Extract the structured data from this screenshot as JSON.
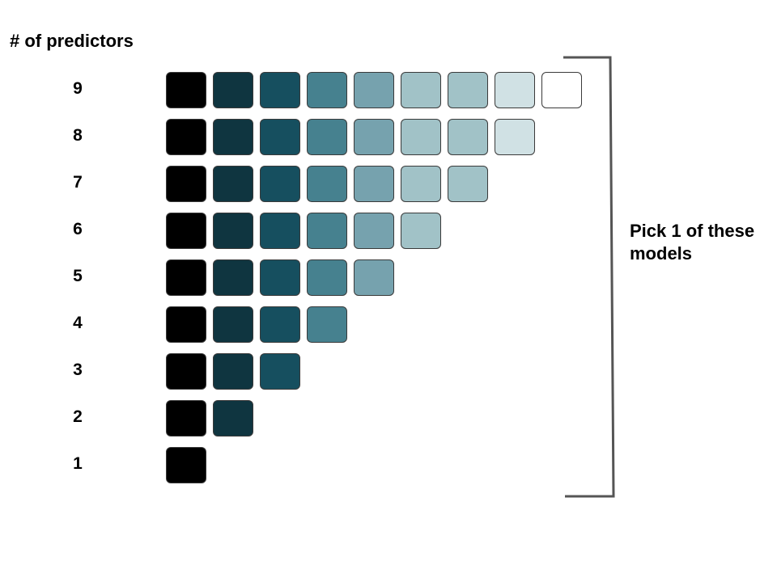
{
  "header": {
    "title": "# of predictors"
  },
  "rows": [
    {
      "label": "9",
      "count": 9
    },
    {
      "label": "8",
      "count": 8
    },
    {
      "label": "7",
      "count": 7
    },
    {
      "label": "6",
      "count": 6
    },
    {
      "label": "5",
      "count": 5
    },
    {
      "label": "4",
      "count": 4
    },
    {
      "label": "3",
      "count": 3
    },
    {
      "label": "2",
      "count": 2
    },
    {
      "label": "1",
      "count": 1
    }
  ],
  "palette": [
    "#000000",
    "#0f3540",
    "#164f5f",
    "#46818f",
    "#76a2ae",
    "#a1c2c7",
    "#a1c2c7",
    "#d0e1e4",
    "#ffffff"
  ],
  "bracket_color": "#555555",
  "note": {
    "line1": "Pick 1 of these",
    "line2": "models"
  }
}
